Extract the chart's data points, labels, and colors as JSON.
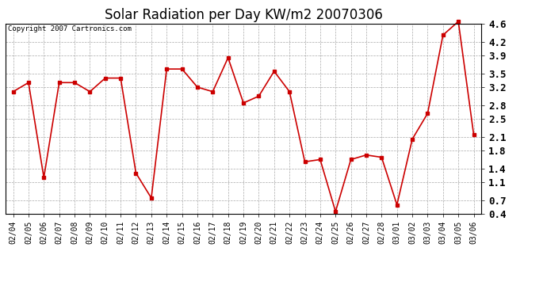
{
  "title": "Solar Radiation per Day KW/m2 20070306",
  "copyright": "Copyright 2007 Cartronics.com",
  "dates": [
    "02/04",
    "02/05",
    "02/06",
    "02/07",
    "02/08",
    "02/09",
    "02/10",
    "02/11",
    "02/12",
    "02/13",
    "02/14",
    "02/15",
    "02/16",
    "02/17",
    "02/18",
    "02/19",
    "02/20",
    "02/21",
    "02/22",
    "02/23",
    "02/24",
    "02/25",
    "02/26",
    "02/27",
    "02/28",
    "03/01",
    "03/02",
    "03/03",
    "03/04",
    "03/05",
    "03/06"
  ],
  "values": [
    3.1,
    3.3,
    1.2,
    3.3,
    3.3,
    3.1,
    3.4,
    3.4,
    1.3,
    0.75,
    3.6,
    3.6,
    3.2,
    3.1,
    3.85,
    2.85,
    3.0,
    3.55,
    3.1,
    1.55,
    1.6,
    0.45,
    1.6,
    1.7,
    1.65,
    0.6,
    2.05,
    2.62,
    4.35,
    4.65,
    2.15
  ],
  "line_color": "#cc0000",
  "marker": "s",
  "marker_size": 3,
  "line_width": 1.2,
  "ylim": [
    0.4,
    4.6
  ],
  "yticks": [
    0.4,
    0.7,
    1.1,
    1.4,
    1.8,
    2.1,
    2.5,
    2.8,
    3.2,
    3.5,
    3.9,
    4.2,
    4.6
  ],
  "ytick_labels": [
    "0.4",
    "0.7",
    "1.1",
    "1.4",
    "1.8",
    "2.1",
    "2.5",
    "2.8",
    "3.2",
    "3.5",
    "3.9",
    "4.2",
    "4.6"
  ],
  "bg_color": "#ffffff",
  "grid_color": "#aaaaaa",
  "title_fontsize": 12,
  "copyright_fontsize": 6.5,
  "tick_fontsize": 7,
  "ytick_fontsize": 9
}
